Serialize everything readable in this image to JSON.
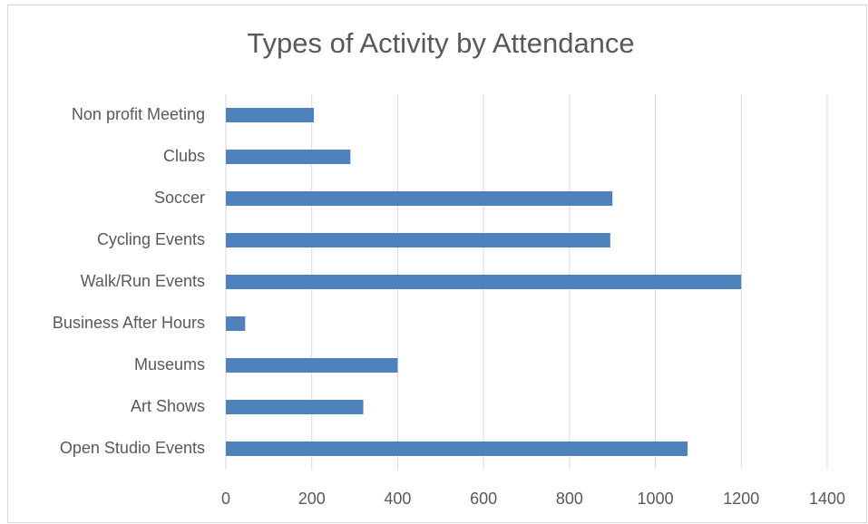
{
  "chart_data": {
    "type": "bar",
    "orientation": "horizontal",
    "title": "Types of Activity by Attendance",
    "categories": [
      "Non profit Meeting",
      "Clubs",
      "Soccer",
      "Cycling Events",
      "Walk/Run Events",
      "Business After Hours",
      "Museums",
      "Art Shows",
      "Open Studio Events"
    ],
    "values": [
      205,
      290,
      900,
      895,
      1200,
      45,
      400,
      320,
      1075
    ],
    "color": "#4f81bd",
    "xlim": [
      0,
      1400
    ],
    "xticks": [
      0,
      200,
      400,
      600,
      800,
      1000,
      1200,
      1400
    ],
    "grid": true
  }
}
